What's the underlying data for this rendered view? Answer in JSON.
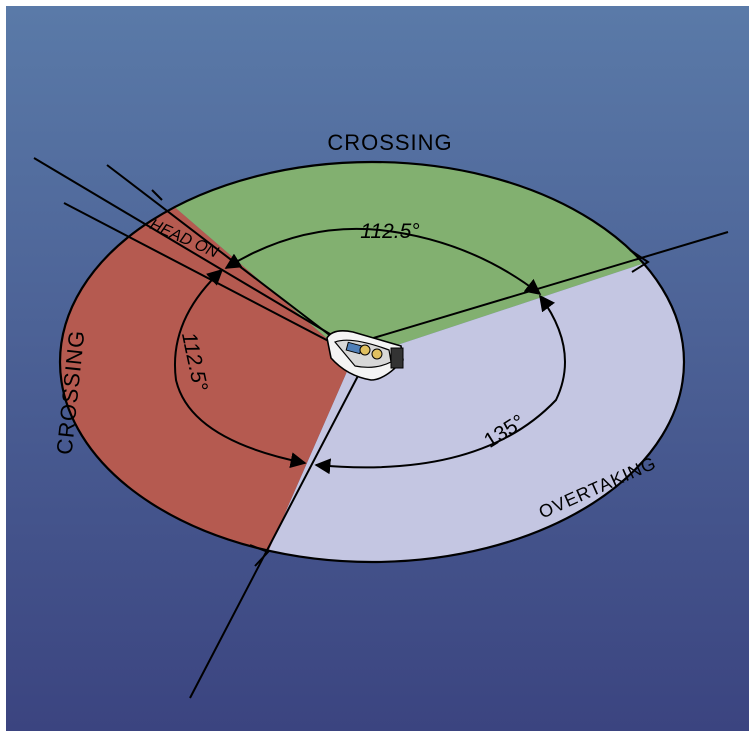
{
  "labels": {
    "crossing_top": "CROSSING",
    "crossing_left": "CROSSING",
    "head_on": "HEAD ON",
    "overtaking": "OVERTAKING",
    "angle_green": "112.5°",
    "angle_red": "112.5°",
    "angle_overtaking": "135°"
  },
  "colors": {
    "sky_top": "#5a7aa8",
    "sky_bottom": "#3c4680",
    "crossing_green": "#82b070",
    "crossing_red": "#b55a50",
    "overtaking": "#c4c6e2",
    "line": "#000000"
  }
}
